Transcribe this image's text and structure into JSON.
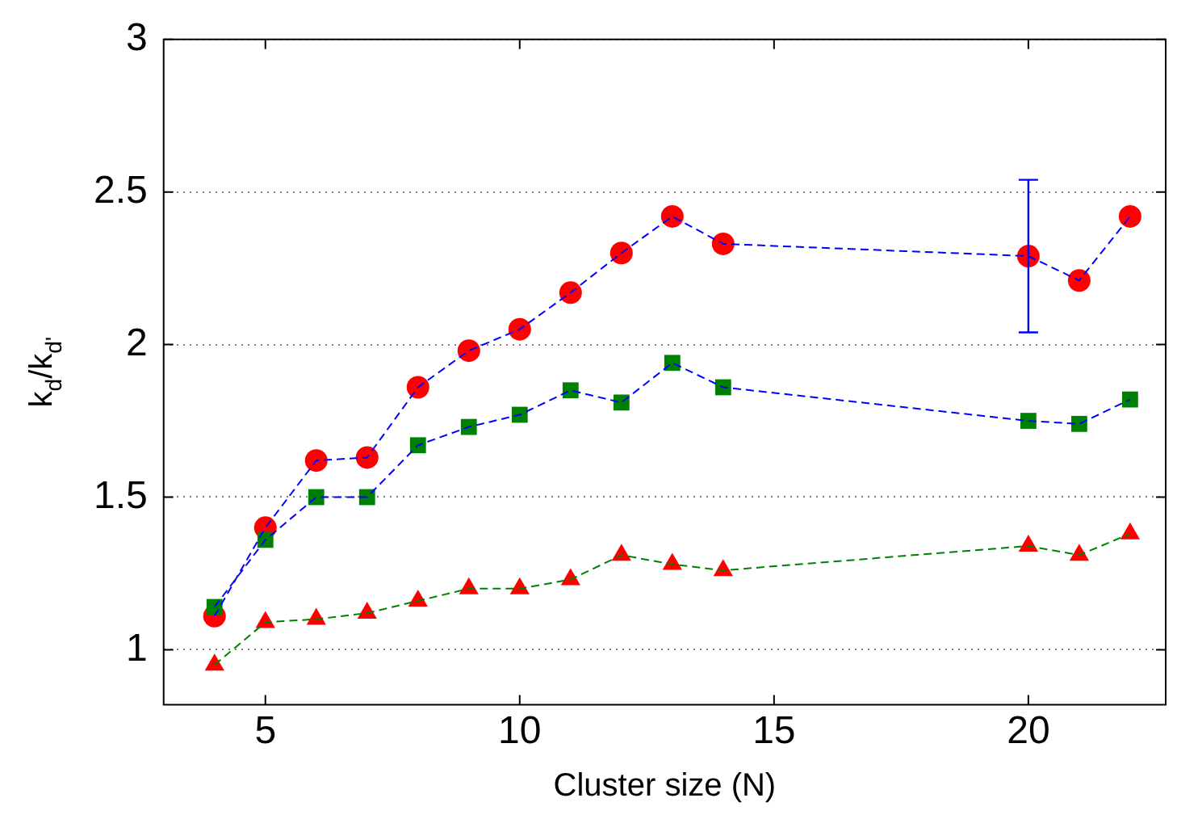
{
  "chart_data": {
    "type": "line",
    "xlabel": "Cluster size (N)",
    "ylabel": "k$_{d}$/k$_{d'}$",
    "x": [
      4,
      5,
      6,
      7,
      8,
      9,
      10,
      11,
      12,
      13,
      14,
      20,
      21,
      22
    ],
    "series": [
      {
        "color": "#0000ff",
        "values": [
          1.11,
          1.4,
          1.62,
          1.63,
          1.86,
          1.98,
          2.05,
          2.17,
          2.3,
          2.42,
          2.33,
          2.29,
          2.21,
          2.42
        ],
        "errors": [
          null,
          null,
          null,
          null,
          null,
          null,
          null,
          null,
          null,
          null,
          null,
          [
            2.04,
            2.54
          ],
          null,
          null
        ]
      },
      {
        "color": "#0000ff",
        "values": [
          1.14,
          1.36,
          1.5,
          1.5,
          1.67,
          1.73,
          1.77,
          1.85,
          1.81,
          1.94,
          1.86,
          1.75,
          1.74,
          1.82
        ]
      },
      {
        "color": "#008000",
        "values": [
          0.95,
          1.09,
          1.1,
          1.12,
          1.16,
          1.2,
          1.2,
          1.23,
          1.31,
          1.28,
          1.26,
          1.34,
          1.31,
          1.38
        ]
      },
      {
        "type": "scatter",
        "color": "#008000",
        "marker": "square",
        "values": [
          1.14,
          1.36,
          1.5,
          1.5,
          1.67,
          1.73,
          1.77,
          1.85,
          1.81,
          1.94,
          1.86,
          1.75,
          1.74,
          1.82
        ]
      },
      {
        "type": "scatter",
        "color": "#ff0000",
        "marker": "circle",
        "values": [
          1.11,
          1.4,
          1.62,
          1.63,
          1.86,
          1.98,
          2.05,
          2.17,
          2.3,
          2.42,
          2.33,
          2.29,
          2.21,
          2.42
        ]
      },
      {
        "type": "scatter",
        "color": "#ff0000",
        "marker": "triangle",
        "values": [
          0.95,
          1.09,
          1.1,
          1.12,
          1.16,
          1.2,
          1.2,
          1.23,
          1.31,
          1.28,
          1.26,
          1.34,
          1.31,
          1.38
        ]
      }
    ],
    "xlim": [
      3,
      22.7
    ],
    "xticks": [
      5,
      10,
      15,
      20
    ],
    "ylim": [
      0.82,
      3
    ],
    "yticks": [
      1,
      1.5,
      2,
      2.5,
      3
    ],
    "grid": "y",
    "legend": false,
    "line_style": "dashed"
  }
}
